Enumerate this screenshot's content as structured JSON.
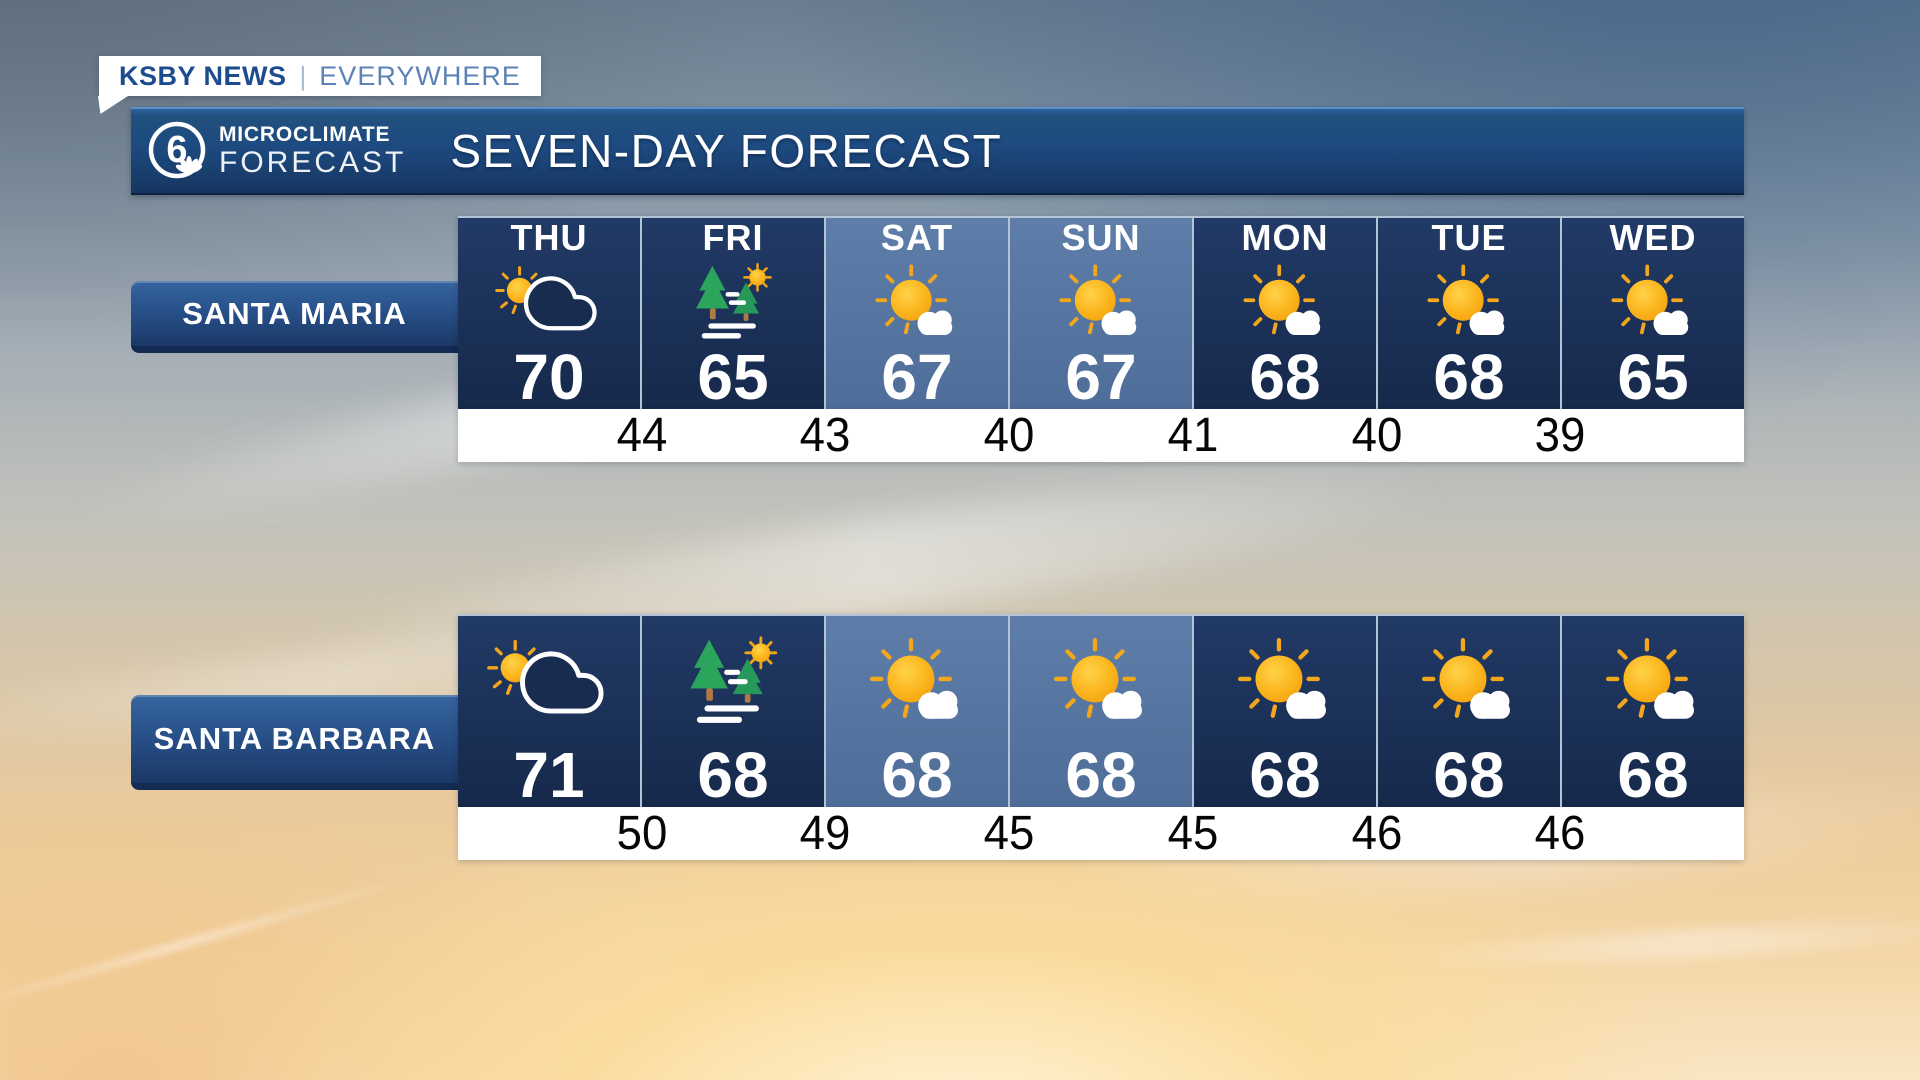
{
  "branding": {
    "station": "KSBY NEWS",
    "separator": "|",
    "tagline": "EVERYWHERE",
    "logo_number": "6",
    "logo_line1": "MICROCLIMATE",
    "logo_line2": "FORECAST"
  },
  "header": {
    "title": "SEVEN-DAY FORECAST"
  },
  "days": [
    "THU",
    "FRI",
    "SAT",
    "SUN",
    "MON",
    "TUE",
    "WED"
  ],
  "weekend_days": [
    "SAT",
    "SUN"
  ],
  "locations": [
    {
      "name": "SANTA MARIA",
      "show_day_labels": true,
      "highs": [
        70,
        65,
        67,
        67,
        68,
        68,
        65
      ],
      "overnight_lows": [
        44,
        43,
        40,
        41,
        40,
        39
      ],
      "conditions": [
        "partly-cloudy",
        "morning-fog-then-sun",
        "mostly-sunny",
        "mostly-sunny",
        "mostly-sunny",
        "mostly-sunny",
        "mostly-sunny"
      ]
    },
    {
      "name": "SANTA BARBARA",
      "show_day_labels": false,
      "highs": [
        71,
        68,
        68,
        68,
        68,
        68,
        68
      ],
      "overnight_lows": [
        50,
        49,
        45,
        45,
        46,
        46
      ],
      "conditions": [
        "partly-cloudy",
        "morning-fog-then-sun",
        "mostly-sunny",
        "mostly-sunny",
        "mostly-sunny",
        "mostly-sunny",
        "mostly-sunny"
      ]
    }
  ],
  "colors": {
    "navy_column": "#16294b",
    "weekend_column": "#52719d",
    "header_blue": "#1d4a80",
    "label_bar_blue": "#28518a",
    "badge_station_blue": "#1d4c8e",
    "badge_tagline_blue": "#5d83b6",
    "sun_yellow": "#f8b312",
    "tree_green": "#2ba45c",
    "high_text": "#ffffff",
    "low_text": "#000000",
    "white_strip": "#ffffff"
  },
  "chart_data": {
    "type": "table",
    "title": "SEVEN-DAY FORECAST",
    "categories": [
      "THU",
      "FRI",
      "SAT",
      "SUN",
      "MON",
      "TUE",
      "WED"
    ],
    "series": [
      {
        "name": "Santa Maria high (F)",
        "values": [
          70,
          65,
          67,
          67,
          68,
          68,
          65
        ]
      },
      {
        "name": "Santa Maria overnight low (F)",
        "values": [
          44,
          43,
          40,
          41,
          40,
          39
        ]
      },
      {
        "name": "Santa Barbara high (F)",
        "values": [
          71,
          68,
          68,
          68,
          68,
          68,
          68
        ]
      },
      {
        "name": "Santa Barbara overnight low (F)",
        "values": [
          50,
          49,
          45,
          45,
          46,
          46
        ]
      }
    ],
    "conditions_by_day": {
      "THU": "partly cloudy",
      "FRI": "morning fog then sun",
      "SAT": "mostly sunny",
      "SUN": "mostly sunny",
      "MON": "mostly sunny",
      "TUE": "mostly sunny",
      "WED": "mostly sunny"
    },
    "notes": "Overnight lows printed between day columns; SAT and SUN columns highlighted lighter blue",
    "legend_position": "none",
    "grid": false
  }
}
